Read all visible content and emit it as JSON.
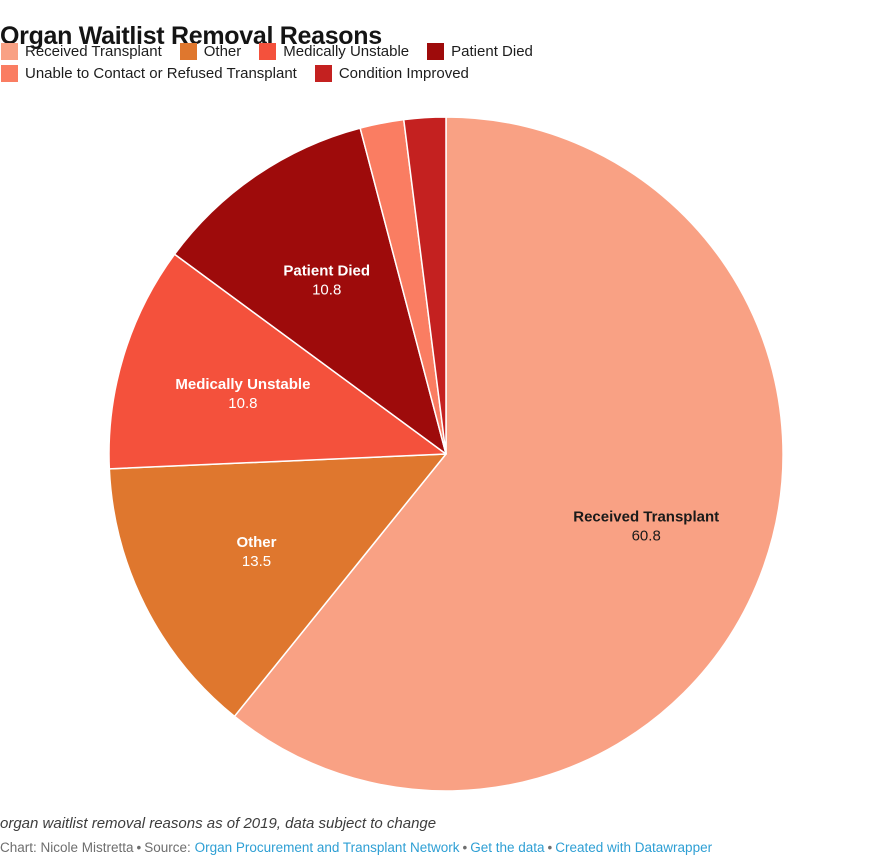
{
  "header": {
    "title": "Organ Waitlist Removal Reasons"
  },
  "chart_data": {
    "type": "pie",
    "title": "Organ Waitlist Removal Reasons",
    "start_angle": "12 o'clock, clockwise",
    "legend_position": "top",
    "slices": [
      {
        "label": "Received Transplant",
        "value": 60.8,
        "display": "60.8",
        "color": "#F9A184",
        "label_color": "#1a1a1a",
        "show_label": true
      },
      {
        "label": "Other",
        "value": 13.5,
        "display": "13.5",
        "color": "#DF772E",
        "label_color": "#ffffff",
        "show_label": true
      },
      {
        "label": "Medically Unstable",
        "value": 10.8,
        "display": "10.8",
        "color": "#F4513C",
        "label_color": "#ffffff",
        "show_label": true
      },
      {
        "label": "Patient Died",
        "value": 10.8,
        "display": "10.8",
        "color": "#9E0B0B",
        "label_color": "#ffffff",
        "show_label": true
      },
      {
        "label": "Unable to Contact or Refused Transplant",
        "value": 2.1,
        "display": "",
        "color": "#FA7D62",
        "label_color": "#ffffff",
        "show_label": false
      },
      {
        "label": "Condition Improved",
        "value": 2.0,
        "display": "",
        "color": "#C42120",
        "label_color": "#ffffff",
        "show_label": false
      }
    ]
  },
  "footer": {
    "notes": "organ waitlist removal reasons as of 2019, data subject to change",
    "chart_credit": "Chart: Nicole Mistretta",
    "source_label": "Source:",
    "source_link": "Organ Procurement and Transplant Network",
    "get_data_link": "Get the data",
    "created_link": "Created with Datawrapper",
    "separator": "•"
  }
}
